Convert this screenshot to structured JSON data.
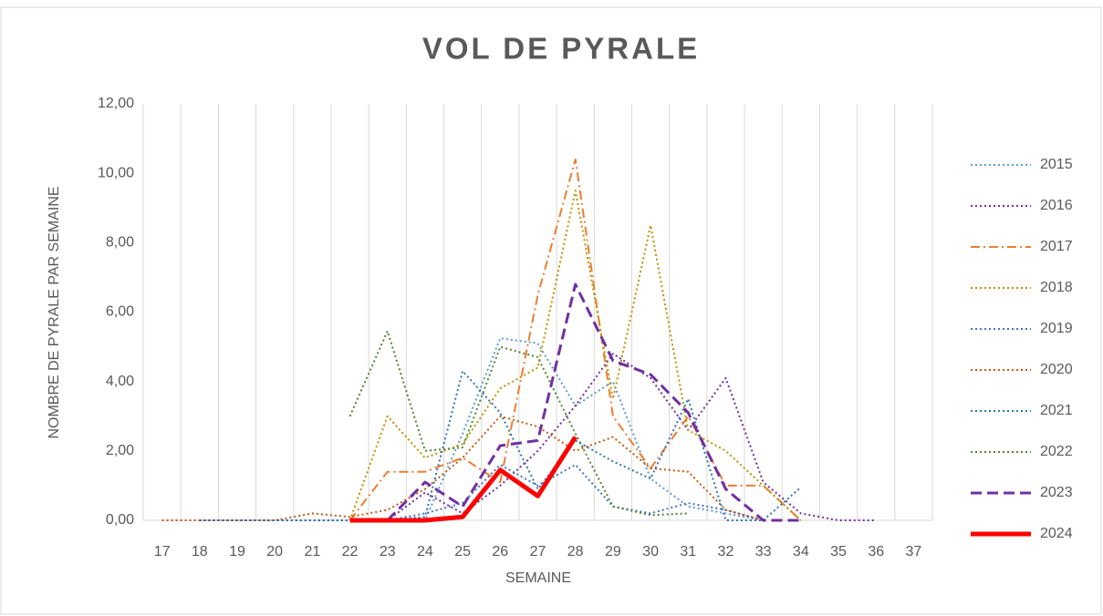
{
  "chart_data": {
    "type": "line",
    "title": "VOL DE PYRALE",
    "x_label": "SEMAINE",
    "y_label": "NOMBRE DE PYRALE PAR SEMAINE",
    "categories": [
      "17",
      "18",
      "19",
      "20",
      "21",
      "22",
      "23",
      "24",
      "25",
      "26",
      "27",
      "28",
      "29",
      "30",
      "31",
      "32",
      "33",
      "34",
      "35",
      "36",
      "37"
    ],
    "ylim": [
      0,
      12
    ],
    "yticks": [
      {
        "value": 0,
        "label": "0,00"
      },
      {
        "value": 2,
        "label": "2,00"
      },
      {
        "value": 4,
        "label": "4,00"
      },
      {
        "value": 6,
        "label": "6,00"
      },
      {
        "value": 8,
        "label": "8,00"
      },
      {
        "value": 10,
        "label": "10,00"
      },
      {
        "value": 12,
        "label": "12,00"
      }
    ],
    "grid": true,
    "legend": "right",
    "series": [
      {
        "name": "2015",
        "color": "#5b9bd5",
        "dash": "dotted",
        "values": [
          null,
          0,
          0,
          0,
          0,
          0,
          0,
          0,
          2.5,
          5.25,
          5.1,
          3.3,
          4.0,
          1.2,
          0.4,
          0.2,
          0,
          null,
          null,
          null,
          null
        ]
      },
      {
        "name": "2016",
        "color": "#7030a0",
        "dash": "dotted",
        "values": [
          null,
          0,
          0,
          0,
          0,
          0,
          0,
          0.8,
          0.2,
          1.0,
          2.0,
          3.3,
          4.8,
          4.1,
          2.6,
          4.1,
          1.1,
          0.2,
          0,
          0,
          null
        ]
      },
      {
        "name": "2017",
        "color": "#ed7d31",
        "dash": "dashdot",
        "values": [
          null,
          null,
          null,
          null,
          null,
          0,
          1.4,
          1.4,
          1.8,
          1.1,
          6.5,
          10.4,
          3.0,
          1.5,
          3.0,
          1.0,
          1.0,
          0,
          null,
          null,
          null
        ]
      },
      {
        "name": "2018",
        "color": "#bf9000",
        "dash": "dotted",
        "values": [
          null,
          null,
          null,
          null,
          null,
          0,
          3.0,
          1.8,
          2.2,
          3.8,
          4.4,
          9.5,
          3.5,
          8.5,
          2.6,
          2.0,
          1.0,
          0,
          null,
          null,
          null
        ]
      },
      {
        "name": "2019",
        "color": "#4472c4",
        "dash": "dotted",
        "values": [
          null,
          0,
          0,
          0,
          0,
          0,
          0,
          0.2,
          0.5,
          1.6,
          1.0,
          1.6,
          0.4,
          0.2,
          0.5,
          0.3,
          0,
          null,
          null,
          null,
          null
        ]
      },
      {
        "name": "2020",
        "color": "#c55a11",
        "dash": "dotted",
        "values": [
          0,
          0,
          0,
          0,
          0.2,
          0.1,
          0.3,
          0.9,
          1.8,
          3.0,
          2.7,
          2.0,
          2.4,
          1.5,
          1.4,
          0.3,
          0,
          null,
          null,
          null,
          null
        ]
      },
      {
        "name": "2021",
        "color": "#2e75b6",
        "dash": "dotted",
        "values": [
          null,
          0,
          0,
          0,
          0,
          0,
          0,
          0.1,
          4.3,
          3.1,
          0.9,
          2.3,
          1.7,
          1.2,
          3.5,
          0,
          0,
          0.95,
          null,
          null,
          null
        ]
      },
      {
        "name": "2022",
        "color": "#548235",
        "dash": "dotted",
        "values": [
          null,
          null,
          null,
          null,
          null,
          3.0,
          5.45,
          2.0,
          2.1,
          5.0,
          4.7,
          2.5,
          0.4,
          0.15,
          0.2,
          null,
          null,
          null,
          null,
          null,
          null
        ]
      },
      {
        "name": "2023",
        "color": "#7030a0",
        "dash": "dashed",
        "values": [
          null,
          null,
          null,
          null,
          null,
          null,
          0,
          1.1,
          0.4,
          2.15,
          2.3,
          6.8,
          4.6,
          4.2,
          3.1,
          0.9,
          0,
          0,
          null,
          null,
          null
        ]
      },
      {
        "name": "2024",
        "color": "#ff0000",
        "dash": "solid",
        "values": [
          null,
          null,
          null,
          null,
          null,
          0,
          0,
          0,
          0.1,
          1.45,
          0.7,
          2.4,
          null,
          null,
          null,
          null,
          null,
          null,
          null,
          null,
          null
        ]
      }
    ]
  }
}
